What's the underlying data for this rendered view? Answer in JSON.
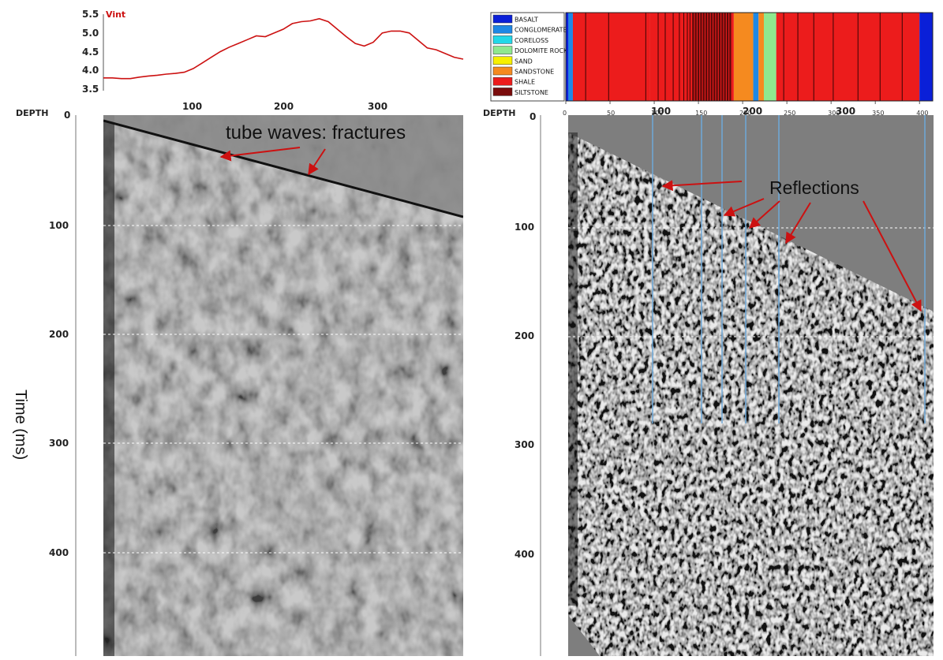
{
  "figure": {
    "y_axis_label": "Time (ms)",
    "left_panel": {
      "depth_label": "DEPTH",
      "depth_ticks": [
        "100",
        "200",
        "300"
      ],
      "time_ticks": [
        "0",
        "100",
        "200",
        "300",
        "400"
      ],
      "annotation": "tube waves: fractures"
    },
    "right_panel": {
      "depth_label": "DEPTH",
      "depth_ticks": [
        "100",
        "200",
        "300"
      ],
      "time_ticks": [
        "0",
        "100",
        "200",
        "300",
        "400"
      ],
      "annotation": "Reflections",
      "lithology_ticks": [
        "0",
        "50",
        "100",
        "150",
        "200",
        "250",
        "300",
        "350",
        "400"
      ]
    },
    "vint_plot": {
      "label": "Vint",
      "ticks": [
        "5.5",
        "5.0",
        "4.5",
        "4.0",
        "3.5"
      ]
    },
    "lithology_legend": [
      {
        "name": "BASALT",
        "color": "#0a1fd8"
      },
      {
        "name": "CONGLOMERATE",
        "color": "#1e88e5"
      },
      {
        "name": "CORELOSS",
        "color": "#22d8e8"
      },
      {
        "name": "DOLOMITE ROCK",
        "color": "#8fe88f"
      },
      {
        "name": "SAND",
        "color": "#f7f000"
      },
      {
        "name": "SANDSTONE",
        "color": "#f58a1f"
      },
      {
        "name": "SHALE",
        "color": "#ec1c1c"
      },
      {
        "name": "SILTSTONE",
        "color": "#7a0c0c"
      }
    ],
    "colors": {
      "vint_line": "#cc1111",
      "arrow": "#cc1111",
      "guide_line": "#6ea8d8",
      "background": "#ffffff"
    }
  },
  "chart_data": [
    {
      "type": "line",
      "title": "",
      "series": [
        {
          "name": "Vint",
          "x": [
            0,
            10,
            20,
            30,
            40,
            50,
            60,
            70,
            80,
            90,
            100,
            110,
            120,
            130,
            140,
            150,
            160,
            170,
            180,
            190,
            200,
            210,
            220,
            230,
            240,
            250,
            260,
            270,
            280,
            290,
            300,
            310,
            320,
            330,
            340,
            350,
            360,
            370,
            380,
            390,
            400
          ],
          "y": [
            3.8,
            3.8,
            3.78,
            3.78,
            3.82,
            3.85,
            3.87,
            3.9,
            3.92,
            3.95,
            4.05,
            4.2,
            4.35,
            4.5,
            4.62,
            4.72,
            4.82,
            4.92,
            4.9,
            5.0,
            5.1,
            5.25,
            5.3,
            5.32,
            5.38,
            5.3,
            5.1,
            4.9,
            4.72,
            4.65,
            4.75,
            5.0,
            5.05,
            5.05,
            5.0,
            4.8,
            4.6,
            4.55,
            4.45,
            4.35,
            4.3
          ]
        }
      ],
      "ylim": [
        3.5,
        5.5
      ]
    },
    {
      "type": "bar",
      "title": "",
      "x_ticks": [
        0,
        50,
        100,
        150,
        200,
        250,
        300,
        350,
        400
      ],
      "intervals": [
        {
          "from": 0,
          "to": 3,
          "lithology": "BASALT"
        },
        {
          "from": 3,
          "to": 8,
          "lithology": "CONGLOMERATE"
        },
        {
          "from": 8,
          "to": 95,
          "lithology": "SHALE"
        },
        {
          "from": 95,
          "to": 190,
          "lithology": "SHALE"
        },
        {
          "from": 190,
          "to": 212,
          "lithology": "SANDSTONE"
        },
        {
          "from": 212,
          "to": 218,
          "lithology": "CONGLOMERATE"
        },
        {
          "from": 218,
          "to": 224,
          "lithology": "SANDSTONE"
        },
        {
          "from": 224,
          "to": 238,
          "lithology": "DOLOMITE ROCK"
        },
        {
          "from": 238,
          "to": 400,
          "lithology": "SHALE"
        },
        {
          "from": 400,
          "to": 415,
          "lithology": "BASALT"
        }
      ]
    }
  ]
}
